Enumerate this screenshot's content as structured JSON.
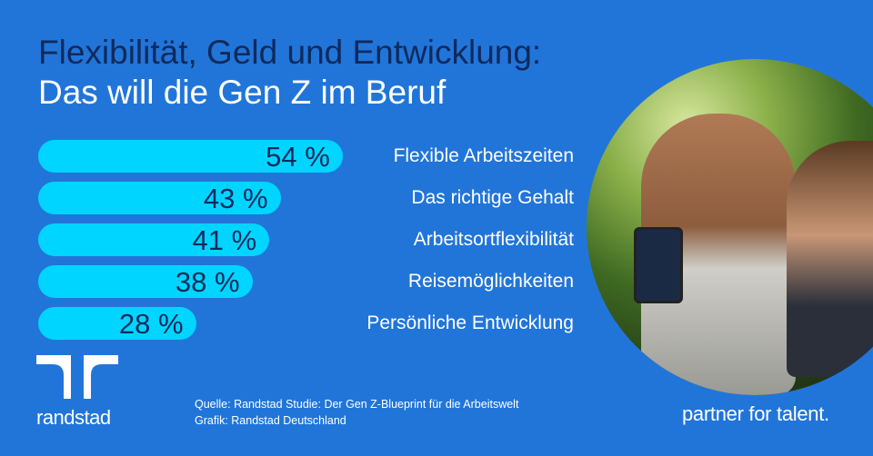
{
  "title": {
    "line1": "Flexibilität, Geld und Entwicklung:",
    "line2": "Das will die Gen Z im Beruf"
  },
  "chart_data": {
    "type": "bar",
    "orientation": "horizontal",
    "categories": [
      "Flexible Arbeitszeiten",
      "Das richtige Gehalt",
      "Arbeitsortflexibilität",
      "Reisemöglichkeiten",
      "Persönliche Entwicklung"
    ],
    "values": [
      54,
      43,
      41,
      38,
      28
    ],
    "value_labels": [
      "54 %",
      "43 %",
      "41 %",
      "38 %",
      "28 %"
    ],
    "unit": "%",
    "bar_color": "#00d5ff",
    "grid": false
  },
  "colors": {
    "background": "#2175d9",
    "title_dark": "#0f2a5c",
    "bar": "#00d5ff"
  },
  "logo": {
    "text": "randstad",
    "icon": "randstad-logo-icon"
  },
  "source": {
    "line1": "Quelle: Randstad Studie: Der Gen Z-Blueprint für die Arbeitswelt",
    "line2": "Grafik: Randstad Deutschland"
  },
  "tagline": "partner for talent."
}
